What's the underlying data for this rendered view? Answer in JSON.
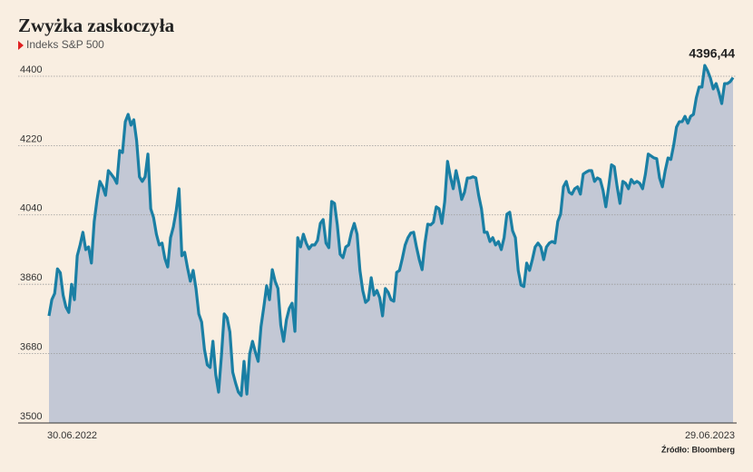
{
  "chart_data": {
    "type": "area",
    "title": "Zwyżka zaskoczyła",
    "subtitle": "Indeks S&P 500",
    "source": "Źródło: Bloomberg",
    "last_value_label": "4396,44",
    "color": "#1a7fa4",
    "fill_color": "#c3c8d5",
    "grid": true,
    "ylim": [
      3500,
      4440
    ],
    "yticks": [
      3500,
      3680,
      3860,
      4040,
      4220,
      4400
    ],
    "categories": [
      "30.06.2022",
      null,
      null,
      null,
      null,
      null,
      null,
      null,
      null,
      null,
      null,
      null,
      null,
      null,
      null,
      null,
      null,
      null,
      null,
      null,
      null,
      null,
      null,
      null,
      null,
      null,
      null,
      null,
      null,
      null,
      null,
      null,
      null,
      null,
      null,
      null,
      null,
      null,
      null,
      null,
      null,
      null,
      null,
      null,
      null,
      null,
      null,
      null,
      null,
      null,
      null,
      null,
      null,
      null,
      null,
      null,
      null,
      null,
      null,
      null,
      null,
      null,
      null,
      null,
      null,
      null,
      null,
      null,
      null,
      null,
      null,
      null,
      null,
      null,
      null,
      null,
      null,
      null,
      null,
      null,
      null,
      null,
      null,
      null,
      null,
      null,
      null,
      null,
      null,
      null,
      null,
      null,
      null,
      null,
      null,
      null,
      null,
      null,
      null,
      null,
      null,
      null,
      null,
      null,
      null,
      null,
      null,
      null,
      null,
      null,
      null,
      null,
      null,
      null,
      null,
      null,
      null,
      null,
      null,
      null,
      null,
      null,
      null,
      null,
      null,
      null,
      null,
      null,
      null,
      null,
      null,
      null,
      null,
      null,
      null,
      null,
      null,
      null,
      null,
      null,
      null,
      null,
      null,
      null,
      null,
      null,
      null,
      null,
      null,
      null,
      null,
      null,
      null,
      null,
      null,
      null,
      null,
      null,
      null,
      null,
      null,
      null,
      null,
      null,
      null,
      null,
      null,
      null,
      null,
      null,
      null,
      null,
      null,
      null,
      null,
      null,
      null,
      null,
      null,
      null,
      null,
      null,
      null,
      null,
      null,
      null,
      null,
      null,
      null,
      null,
      null,
      null,
      null,
      null,
      null,
      null,
      null,
      null,
      null,
      null,
      null,
      null,
      null,
      null,
      null,
      null,
      null,
      null,
      null,
      null,
      null,
      null,
      null,
      null,
      null,
      null,
      null,
      null,
      null,
      null,
      null,
      null,
      null,
      null,
      null,
      null,
      null,
      null,
      null,
      null,
      null,
      null,
      null,
      null,
      null,
      null,
      null,
      null,
      null,
      null,
      null,
      null,
      "29.06.2023"
    ],
    "values": [
      3778,
      3820,
      3836,
      3900,
      3890,
      3832,
      3801,
      3787,
      3860,
      3820,
      3934,
      3962,
      3995,
      3950,
      3957,
      3915,
      4023,
      4080,
      4127,
      4113,
      4091,
      4155,
      4146,
      4136,
      4122,
      4207,
      4202,
      4282,
      4301,
      4273,
      4287,
      4233,
      4139,
      4127,
      4139,
      4198,
      4056,
      4033,
      3990,
      3962,
      3967,
      3927,
      3905,
      3981,
      4009,
      4051,
      4108,
      3934,
      3943,
      3903,
      3868,
      3896,
      3849,
      3783,
      3762,
      3691,
      3651,
      3644,
      3712,
      3625,
      3580,
      3674,
      3783,
      3773,
      3736,
      3632,
      3604,
      3580,
      3571,
      3660,
      3575,
      3679,
      3712,
      3684,
      3660,
      3750,
      3801,
      3856,
      3820,
      3898,
      3868,
      3849,
      3754,
      3712,
      3768,
      3797,
      3811,
      3738,
      3981,
      3957,
      3990,
      3967,
      3952,
      3962,
      3962,
      3974,
      4018,
      4028,
      3967,
      3955,
      4075,
      4070,
      4014,
      3938,
      3929,
      3957,
      3962,
      3995,
      4018,
      3990,
      3896,
      3844,
      3813,
      3820,
      3877,
      3832,
      3844,
      3825,
      3778,
      3849,
      3839,
      3820,
      3816,
      3891,
      3896,
      3927,
      3962,
      3981,
      3993,
      3995,
      3957,
      3924,
      3898,
      3967,
      4016,
      4014,
      4021,
      4061,
      4056,
      4018,
      4075,
      4179,
      4139,
      4108,
      4155,
      4122,
      4080,
      4099,
      4136,
      4136,
      4139,
      4136,
      4091,
      4056,
      3995,
      3995,
      3971,
      3981,
      3962,
      3971,
      3950,
      3981,
      4042,
      4047,
      3999,
      3981,
      3896,
      3858,
      3854,
      3915,
      3896,
      3924,
      3957,
      3967,
      3957,
      3924,
      3957,
      3967,
      3971,
      3967,
      4023,
      4042,
      4113,
      4127,
      4099,
      4094,
      4108,
      4113,
      4094,
      4146,
      4151,
      4155,
      4155,
      4127,
      4136,
      4132,
      4104,
      4061,
      4113,
      4170,
      4165,
      4113,
      4070,
      4127,
      4122,
      4108,
      4132,
      4122,
      4127,
      4122,
      4108,
      4146,
      4198,
      4193,
      4188,
      4186,
      4136,
      4113,
      4155,
      4188,
      4184,
      4221,
      4268,
      4282,
      4282,
      4296,
      4278,
      4296,
      4301,
      4344,
      4372,
      4372,
      4428,
      4414,
      4395,
      4367,
      4381,
      4358,
      4329,
      4381,
      4381,
      4386,
      4396.44
    ]
  }
}
